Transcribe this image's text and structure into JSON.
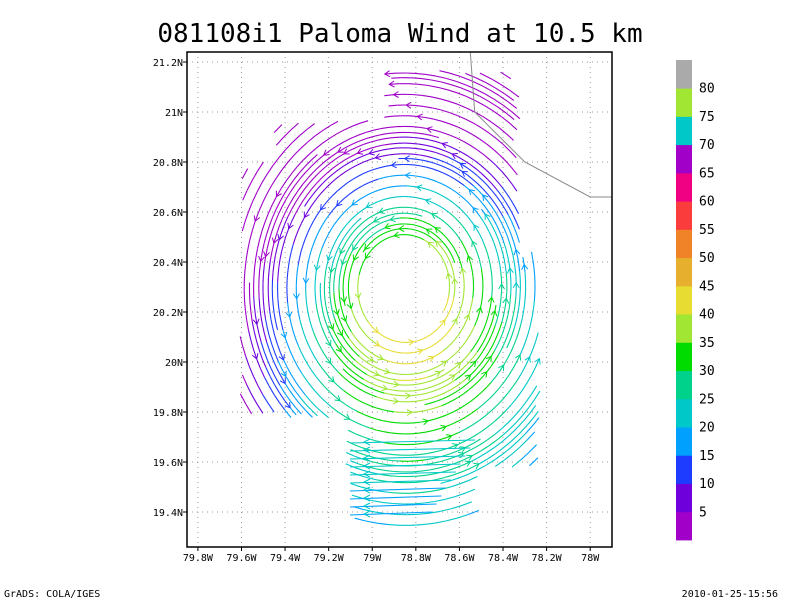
{
  "chart_data": {
    "type": "streamline",
    "title": "081108i1 Paloma Wind at 10.5 km",
    "xlim": [
      -79.85,
      -77.9
    ],
    "ylim": [
      19.26,
      21.24
    ],
    "xticks": [
      {
        "value": -79.8,
        "label": "79.8W"
      },
      {
        "value": -79.6,
        "label": "79.6W"
      },
      {
        "value": -79.4,
        "label": "79.4W"
      },
      {
        "value": -79.2,
        "label": "79.2W"
      },
      {
        "value": -79.0,
        "label": "79W"
      },
      {
        "value": -78.8,
        "label": "78.8W"
      },
      {
        "value": -78.6,
        "label": "78.6W"
      },
      {
        "value": -78.4,
        "label": "78.4W"
      },
      {
        "value": -78.2,
        "label": "78.2W"
      },
      {
        "value": -78.0,
        "label": "78W"
      }
    ],
    "yticks": [
      {
        "value": 19.4,
        "label": "19.4N"
      },
      {
        "value": 19.6,
        "label": "19.6N"
      },
      {
        "value": 19.8,
        "label": "19.8N"
      },
      {
        "value": 20.0,
        "label": "20N"
      },
      {
        "value": 20.2,
        "label": "20.2N"
      },
      {
        "value": 20.4,
        "label": "20.4N"
      },
      {
        "value": 20.6,
        "label": "20.6N"
      },
      {
        "value": 20.8,
        "label": "20.8N"
      },
      {
        "value": 21.0,
        "label": "21N"
      },
      {
        "value": 21.2,
        "label": "21.2N"
      }
    ],
    "grid": true,
    "vortex_center": {
      "lon": -78.85,
      "lat": 20.3
    },
    "coastline": [
      [
        -78.55,
        21.24
      ],
      [
        -78.53,
        21.0
      ],
      [
        -78.3,
        20.8
      ],
      [
        -78.0,
        20.66
      ],
      [
        -77.9,
        20.66
      ]
    ],
    "colorbar": {
      "labels": [
        "5",
        "10",
        "15",
        "20",
        "25",
        "30",
        "35",
        "40",
        "45",
        "50",
        "55",
        "60",
        "65",
        "70",
        "75",
        "80"
      ],
      "colors": [
        "#a000c8",
        "#6e00dc",
        "#1e3cff",
        "#00a0ff",
        "#00c8c8",
        "#00d28c",
        "#00dc00",
        "#a0e632",
        "#e6dc32",
        "#e6af2d",
        "#f08228",
        "#fa3c3c",
        "#f00082",
        "#a000c8",
        "#00c8c8",
        "#a0e632",
        "#aaaaaa"
      ]
    }
  },
  "footer": {
    "left": "GrADS: COLA/IGES",
    "right": "2010-01-25-15:56"
  }
}
